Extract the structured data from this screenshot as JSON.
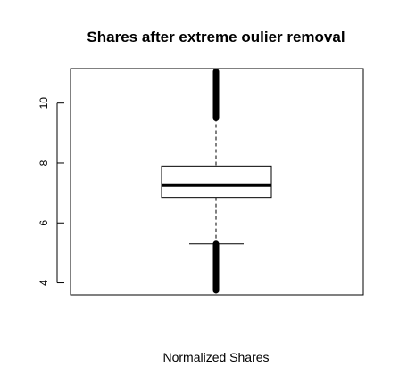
{
  "chart_data": {
    "type": "boxplot",
    "title": "Shares after extreme oulier removal",
    "xlabel": "Normalized Shares",
    "ylabel": "",
    "ylim": [
      3.6,
      11.15
    ],
    "y_ticks": [
      4,
      6,
      8,
      10
    ],
    "y_tick_labels": [
      "4",
      "6",
      "8",
      "10"
    ],
    "grid": false,
    "box": {
      "q1": 6.85,
      "median": 7.25,
      "q3": 7.9,
      "whisker_low": 5.3,
      "whisker_high": 9.5,
      "outliers_low": [
        3.75,
        5.3
      ],
      "outliers_high": [
        9.5,
        11.05
      ]
    }
  }
}
